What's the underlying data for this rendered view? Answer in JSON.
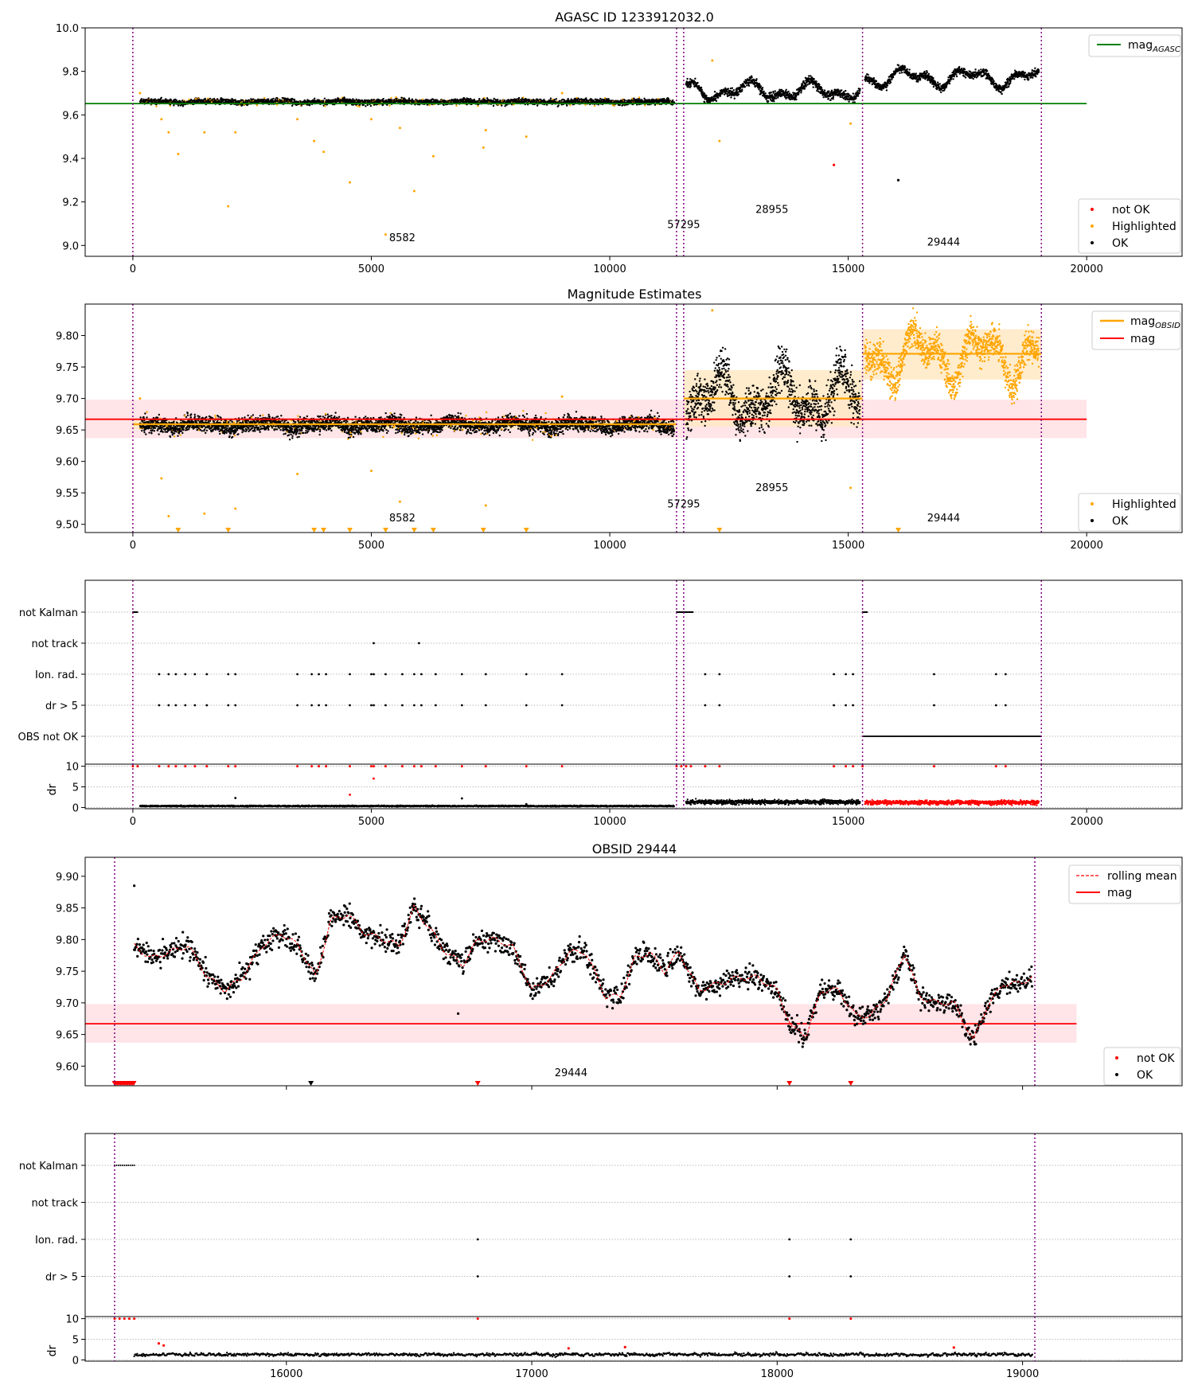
{
  "chart_data": [
    {
      "type": "scatter",
      "title": "AGASC ID 1233912032.0",
      "xlim": [
        -1000,
        22000
      ],
      "ylim": [
        8.95,
        10.0
      ],
      "x_ticks": [
        0,
        5000,
        10000,
        15000,
        20000
      ],
      "y_ticks": [
        9.0,
        9.2,
        9.4,
        9.6,
        9.8,
        10.0
      ],
      "y_tick_labels": [
        "9.0",
        "9.2",
        "9.4",
        "9.6",
        "9.8",
        "10.0"
      ],
      "reference_line": {
        "name": "mag_AGASC",
        "y": 9.652,
        "x_range": [
          -1000,
          20000
        ],
        "color": "#008000"
      },
      "obsid_boundaries": [
        0,
        11400,
        11550,
        15300,
        19050
      ],
      "obsid_labels": [
        {
          "text": "8582",
          "x": 5650,
          "y": 9.02
        },
        {
          "text": "57295",
          "x": 11550,
          "y": 9.08
        },
        {
          "text": "28955",
          "x": 13400,
          "y": 9.15
        },
        {
          "text": "29444",
          "x": 17000,
          "y": 9.0
        }
      ],
      "segments": [
        {
          "x": [
            150,
            11350
          ],
          "mean": 9.66,
          "spread": 0.012,
          "amp": 0.005
        },
        {
          "x": [
            11600,
            15250
          ],
          "mean": 9.71,
          "spread": 0.02,
          "amp": 0.05
        },
        {
          "x": [
            15350,
            19000
          ],
          "mean": 9.77,
          "spread": 0.018,
          "amp": 0.05
        }
      ],
      "highlighted_outliers": [
        [
          150,
          9.7
        ],
        [
          600,
          9.58
        ],
        [
          750,
          9.52
        ],
        [
          950,
          9.42
        ],
        [
          1500,
          9.52
        ],
        [
          2000,
          9.18
        ],
        [
          2150,
          9.52
        ],
        [
          3450,
          9.58
        ],
        [
          3800,
          9.48
        ],
        [
          4000,
          9.43
        ],
        [
          4550,
          9.29
        ],
        [
          5000,
          9.58
        ],
        [
          5300,
          9.05
        ],
        [
          5600,
          9.54
        ],
        [
          5900,
          9.25
        ],
        [
          6300,
          9.41
        ],
        [
          7350,
          9.45
        ],
        [
          7400,
          9.53
        ],
        [
          8250,
          9.5
        ],
        [
          9000,
          9.7
        ],
        [
          12150,
          9.85
        ],
        [
          12300,
          9.48
        ],
        [
          15050,
          9.56
        ]
      ],
      "notok_points": [
        [
          14700,
          9.37
        ]
      ],
      "extra_ok_points": [
        [
          16050,
          9.3
        ]
      ],
      "legend": {
        "position": "lower-right",
        "entries": [
          "not OK",
          "Highlighted",
          "OK"
        ]
      },
      "legend_top": {
        "position": "upper-right",
        "entries": [
          "mag_AGASC"
        ]
      }
    },
    {
      "type": "scatter",
      "title": "Magnitude Estimates",
      "xlim": [
        -1000,
        22000
      ],
      "ylim": [
        9.487,
        9.85
      ],
      "x_ticks": [
        0,
        5000,
        10000,
        15000,
        20000
      ],
      "y_ticks": [
        9.5,
        9.55,
        9.6,
        9.65,
        9.7,
        9.75,
        9.8
      ],
      "y_tick_labels": [
        "9.50",
        "9.55",
        "9.60",
        "9.65",
        "9.70",
        "9.75",
        "9.80"
      ],
      "mag": {
        "y": 9.667,
        "band": [
          9.637,
          9.698
        ]
      },
      "mag_obsid": [
        {
          "x": [
            0,
            11400
          ],
          "y": 9.659,
          "band": [
            9.651,
            9.667
          ]
        },
        {
          "x": [
            11550,
            15300
          ],
          "y": 9.7,
          "band": [
            9.655,
            9.745
          ]
        },
        {
          "x": [
            15300,
            19050
          ],
          "y": 9.771,
          "band": [
            9.73,
            9.81
          ]
        }
      ],
      "obsid_labels": [
        {
          "text": "8582",
          "x": 5650,
          "y": 9.505
        },
        {
          "text": "57295",
          "x": 11550,
          "y": 9.527
        },
        {
          "text": "28955",
          "x": 13400,
          "y": 9.553
        },
        {
          "text": "29444",
          "x": 17000,
          "y": 9.505
        }
      ],
      "segments": [
        {
          "x": [
            150,
            11350
          ],
          "mean": 9.658,
          "spread": 0.012,
          "amp": 0.006,
          "color": "#000000"
        },
        {
          "x": [
            11600,
            15250
          ],
          "mean": 9.7,
          "spread": 0.035,
          "amp": 0.05,
          "color": "#000000"
        },
        {
          "x": [
            15350,
            19000
          ],
          "mean": 9.768,
          "spread": 0.025,
          "amp": 0.05,
          "color": "#ffa500"
        }
      ],
      "highlighted_outliers": [
        [
          150,
          9.7
        ],
        [
          600,
          9.573
        ],
        [
          750,
          9.513
        ],
        [
          1500,
          9.517
        ],
        [
          2150,
          9.525
        ],
        [
          3450,
          9.58
        ],
        [
          5000,
          9.585
        ],
        [
          5600,
          9.536
        ],
        [
          7400,
          9.53
        ],
        [
          9000,
          9.703
        ],
        [
          12150,
          9.84
        ],
        [
          15050,
          9.558
        ]
      ],
      "below_range_markers": [
        950,
        2000,
        3800,
        4000,
        4550,
        5300,
        5900,
        6300,
        7350,
        8250,
        12300,
        16050
      ],
      "legend": {
        "position": "lower-right",
        "entries": [
          "Highlighted",
          "OK"
        ]
      },
      "legend_top": {
        "position": "upper-right",
        "entries": [
          "mag_OBSID",
          "mag"
        ]
      }
    },
    {
      "type": "scatter",
      "title": "",
      "categories": [
        "not Kalman",
        "not track",
        "Ion. rad.",
        "dr > 5",
        "OBS not OK"
      ],
      "flags": {
        "not Kalman": {
          "ranges": [
            [
              0,
              100
            ],
            [
              11400,
              11750
            ],
            [
              15300,
              15400
            ]
          ],
          "points": []
        },
        "not track": {
          "ranges": [],
          "points": [
            5050,
            6000
          ]
        },
        "Ion. rad.": {
          "ranges": [],
          "points": [
            550,
            750,
            900,
            1100,
            1300,
            1550,
            2000,
            2150,
            3450,
            3750,
            3900,
            4050,
            4550,
            5000,
            5050,
            5300,
            5650,
            5900,
            6050,
            6350,
            6900,
            7400,
            8250,
            9000,
            12000,
            12300,
            14700,
            14950,
            15100,
            16800,
            18100,
            18300
          ]
        },
        "dr > 5": {
          "ranges": [],
          "points": [
            550,
            750,
            900,
            1100,
            1300,
            1550,
            2000,
            2150,
            3450,
            3750,
            3900,
            4050,
            4550,
            5000,
            5050,
            5300,
            5650,
            5900,
            6050,
            6350,
            6900,
            7400,
            8250,
            9000,
            12000,
            12300,
            14700,
            14950,
            15100,
            16800,
            18100,
            18300
          ]
        },
        "OBS not OK": {
          "ranges": [
            [
              15300,
              19050
            ]
          ],
          "points": []
        }
      },
      "xlim": [
        -1000,
        22000
      ],
      "x_ticks": [
        0,
        5000,
        10000,
        15000,
        20000
      ]
    },
    {
      "type": "scatter",
      "ylabel": "dr",
      "ylim": [
        -0.3,
        10.5
      ],
      "y_ticks": [
        0,
        5,
        10
      ],
      "xlim": [
        -1000,
        22000
      ],
      "x_ticks": [
        0,
        5000,
        10000,
        15000,
        20000
      ],
      "segments": [
        {
          "x": [
            150,
            11350
          ],
          "mean": 0.35,
          "spread": 0.15,
          "color": "#000000"
        },
        {
          "x": [
            11600,
            15250
          ],
          "mean": 1.3,
          "spread": 0.5,
          "color": "#000000"
        },
        {
          "x": [
            15350,
            19000
          ],
          "mean": 1.2,
          "spread": 0.5,
          "color": "#ff0000"
        }
      ],
      "clipped_points_at_10": [
        0,
        100,
        550,
        750,
        900,
        1100,
        1300,
        1550,
        2000,
        2150,
        3450,
        3750,
        3900,
        4050,
        4550,
        5000,
        5050,
        5300,
        5650,
        5900,
        6050,
        6350,
        6900,
        7400,
        8250,
        9000,
        11400,
        11500,
        11600,
        11700,
        12000,
        12300,
        14700,
        14950,
        15100,
        15300,
        16800,
        18100,
        18300
      ],
      "notable_points": [
        [
          4550,
          3.1
        ],
        [
          5050,
          7.0
        ],
        [
          8250,
          0.8
        ],
        [
          2150,
          2.3
        ],
        [
          6900,
          2.2
        ]
      ]
    },
    {
      "type": "scatter",
      "title": "OBSID 29444",
      "xlim": [
        15180,
        19650
      ],
      "ylim": [
        9.569,
        9.93
      ],
      "x_ticks": [
        16000,
        17000,
        18000,
        19000
      ],
      "y_ticks": [
        9.6,
        9.65,
        9.7,
        9.75,
        9.8,
        9.85,
        9.9
      ],
      "y_tick_labels": [
        "9.60",
        "9.65",
        "9.70",
        "9.75",
        "9.80",
        "9.85",
        "9.90"
      ],
      "obsid_boundaries": [
        15300,
        19050
      ],
      "mag": {
        "y": 9.667,
        "band": [
          9.637,
          9.698
        ],
        "x_range": [
          15180,
          19220
        ]
      },
      "obsid_labels": [
        {
          "text": "29444",
          "x": 17160,
          "y": 9.584
        }
      ],
      "curve_x": [
        15380,
        15450,
        15520,
        15600,
        15680,
        15750,
        15820,
        15900,
        15980,
        16050,
        16120,
        16180,
        16250,
        16320,
        16400,
        16460,
        16520,
        16580,
        16650,
        16720,
        16780,
        16850,
        16920,
        17000,
        17080,
        17150,
        17220,
        17300,
        17360,
        17420,
        17480,
        17540,
        17600,
        17680,
        17760,
        17840,
        17920,
        18000,
        18060,
        18120,
        18180,
        18250,
        18320,
        18380,
        18450,
        18520,
        18580,
        18650,
        18720,
        18800,
        18850,
        18920,
        18980,
        19040
      ],
      "curve_y": [
        9.79,
        9.77,
        9.78,
        9.79,
        9.74,
        9.72,
        9.74,
        9.79,
        9.81,
        9.79,
        9.74,
        9.83,
        9.84,
        9.81,
        9.8,
        9.79,
        9.85,
        9.82,
        9.78,
        9.76,
        9.8,
        9.8,
        9.79,
        9.72,
        9.74,
        9.78,
        9.78,
        9.71,
        9.71,
        9.77,
        9.78,
        9.75,
        9.78,
        9.72,
        9.73,
        9.74,
        9.74,
        9.72,
        9.66,
        9.65,
        9.72,
        9.72,
        9.68,
        9.68,
        9.71,
        9.78,
        9.71,
        9.7,
        9.7,
        9.64,
        9.69,
        9.73,
        9.73,
        9.74
      ],
      "below_range_markers": [
        {
          "x": 15400,
          "color": "#ff0000"
        },
        {
          "x": 16100,
          "color": "#000000"
        },
        {
          "x": 16780,
          "color": "#ff0000"
        },
        {
          "x": 18050,
          "color": "#ff0000"
        },
        {
          "x": 18300,
          "color": "#ff0000"
        }
      ],
      "notok_points": [],
      "legend": {
        "position": "lower-right",
        "entries": [
          "not OK",
          "OK"
        ]
      },
      "legend_top": {
        "position": "upper-right",
        "entries": [
          "rolling mean",
          "mag"
        ]
      }
    },
    {
      "type": "scatter",
      "title": "",
      "categories": [
        "not Kalman",
        "not track",
        "Ion. rad.",
        "dr > 5"
      ],
      "flags": {
        "not Kalman": {
          "ranges": [
            [
              15300,
              15380
            ]
          ],
          "points": []
        },
        "not track": {
          "ranges": [],
          "points": []
        },
        "Ion. rad.": {
          "ranges": [],
          "points": [
            16780,
            18050,
            18300
          ]
        },
        "dr > 5": {
          "ranges": [],
          "points": [
            16780,
            18050,
            18300
          ]
        }
      },
      "xlim": [
        15180,
        19650
      ],
      "x_ticks": [
        16000,
        17000,
        18000,
        19000
      ]
    },
    {
      "type": "scatter",
      "ylabel": "dr",
      "ylim": [
        -0.3,
        10.5
      ],
      "y_ticks": [
        0,
        5,
        10
      ],
      "xlim": [
        15180,
        19650
      ],
      "x_ticks": [
        16000,
        17000,
        18000,
        19000
      ],
      "segment": {
        "x": [
          15380,
          19040
        ],
        "mean": 1.3,
        "spread": 0.5
      },
      "clipped_points_at_10": [
        15300,
        15320,
        15340,
        15360,
        15380,
        16780,
        18050,
        18300
      ],
      "notable_points": [
        [
          15480,
          4.0
        ],
        [
          15500,
          3.5
        ],
        [
          17380,
          3.1
        ],
        [
          17150,
          2.8
        ],
        [
          18720,
          3.0
        ]
      ]
    }
  ],
  "labels": {
    "agasc_title": "AGASC ID 1233912032.0",
    "estimates_title": "Magnitude Estimates",
    "obsid_title": "OBSID 29444",
    "dr": "dr",
    "legend_mag_agasc": "mag",
    "legend_mag_agasc_sub": "AGASC",
    "legend_mag_obsid": "mag",
    "legend_mag_obsid_sub": "OBSID",
    "legend_mag": "mag",
    "legend_rolling_mean": "rolling mean",
    "legend_not_ok": "not OK",
    "legend_highlighted": "Highlighted",
    "legend_ok": "OK"
  },
  "colors": {
    "ok": "#000000",
    "highlighted": "#ffa500",
    "not_ok": "#ff0000",
    "agasc_line": "#008000",
    "mag_line": "#ff0000",
    "mag_band": "#ffe4e8",
    "obsid_line": "#ffa500",
    "obsid_band": "#ffe9c4",
    "boundary": "#800080",
    "grid": "#bbbbbb"
  }
}
